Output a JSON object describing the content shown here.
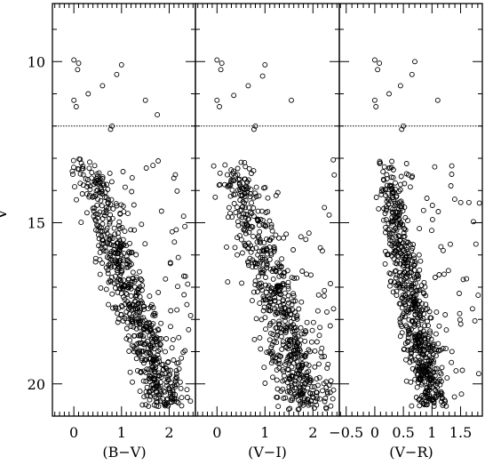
{
  "figure": {
    "ylabel": "V"
  },
  "chart_data": [
    {
      "type": "scatter",
      "xlabel": "(B−V)",
      "ylabel": "V",
      "xlim": [
        -0.45,
        2.55
      ],
      "ylim": [
        21.0,
        8.2
      ],
      "x_ticks": [
        0,
        1,
        2
      ],
      "x_tick_labels": [
        "0",
        "1",
        "2"
      ],
      "y_ticks": [
        10,
        15,
        20
      ],
      "y_tick_labels": [
        "10",
        "15",
        "20"
      ],
      "reference_line_V": 12,
      "grid": false,
      "marker": "open-circle",
      "bright_points": [
        [
          0.0,
          9.95
        ],
        [
          0.1,
          10.05
        ],
        [
          0.08,
          10.25
        ],
        [
          0.0,
          11.2
        ],
        [
          0.05,
          11.4
        ],
        [
          0.3,
          11.0
        ],
        [
          0.6,
          10.75
        ],
        [
          1.0,
          10.1
        ],
        [
          0.9,
          10.4
        ],
        [
          1.5,
          11.2
        ],
        [
          1.75,
          11.65
        ],
        [
          0.8,
          12.0
        ],
        [
          0.77,
          12.1
        ]
      ],
      "cloud": {
        "seed": 11,
        "n": 640,
        "x0": 0.25,
        "v0": 13.0,
        "slope": 0.22,
        "spread": 0.2,
        "vmax": 20.7,
        "xshift": 0.0,
        "xmax": 2.45,
        "outliers": 70
      }
    },
    {
      "type": "scatter",
      "xlabel": "(V−I)",
      "ylabel": "V",
      "xlim": [
        -0.45,
        2.55
      ],
      "ylim": [
        21.0,
        8.2
      ],
      "x_ticks": [
        0,
        1,
        2
      ],
      "x_tick_labels": [
        "0",
        "1",
        "2"
      ],
      "y_ticks": [
        10,
        15,
        20
      ],
      "y_tick_labels": [
        "",
        "",
        ""
      ],
      "reference_line_V": 12,
      "grid": false,
      "marker": "open-circle",
      "bright_points": [
        [
          0.0,
          9.95
        ],
        [
          0.1,
          10.05
        ],
        [
          0.08,
          10.25
        ],
        [
          0.0,
          11.2
        ],
        [
          0.05,
          11.4
        ],
        [
          0.35,
          11.05
        ],
        [
          0.65,
          10.75
        ],
        [
          1.0,
          10.1
        ],
        [
          0.95,
          10.45
        ],
        [
          1.55,
          11.2
        ],
        [
          0.8,
          12.0
        ],
        [
          0.77,
          12.1
        ]
      ],
      "cloud": {
        "seed": 23,
        "n": 620,
        "x0": 0.3,
        "v0": 13.0,
        "slope": 0.2,
        "spread": 0.22,
        "vmax": 20.8,
        "xshift": 0.05,
        "xmax": 2.45,
        "outliers": 70
      }
    },
    {
      "type": "scatter",
      "xlabel": "(V−R)",
      "ylabel": "V",
      "xlim": [
        -0.62,
        1.88
      ],
      "ylim": [
        21.0,
        8.2
      ],
      "x_ticks": [
        -0.5,
        0,
        0.5,
        1,
        1.5
      ],
      "x_tick_labels": [
        "−0.5",
        "0",
        "0.5",
        "1",
        "1.5"
      ],
      "y_ticks": [
        10,
        15,
        20
      ],
      "y_tick_labels": [
        "",
        "",
        ""
      ],
      "reference_line_V": 12,
      "grid": false,
      "marker": "open-circle",
      "bright_points": [
        [
          0.0,
          9.95
        ],
        [
          0.08,
          10.05
        ],
        [
          0.05,
          10.25
        ],
        [
          0.0,
          11.2
        ],
        [
          0.02,
          11.4
        ],
        [
          0.25,
          11.0
        ],
        [
          0.45,
          10.75
        ],
        [
          0.7,
          10.0
        ],
        [
          0.65,
          10.4
        ],
        [
          1.1,
          11.2
        ],
        [
          0.5,
          12.0
        ],
        [
          0.47,
          12.1
        ]
      ],
      "cloud": {
        "seed": 37,
        "n": 640,
        "x0": 0.15,
        "v0": 13.0,
        "slope": 0.11,
        "spread": 0.12,
        "vmax": 20.7,
        "xshift": 0.0,
        "xmax": 1.85,
        "outliers": 70
      }
    }
  ]
}
